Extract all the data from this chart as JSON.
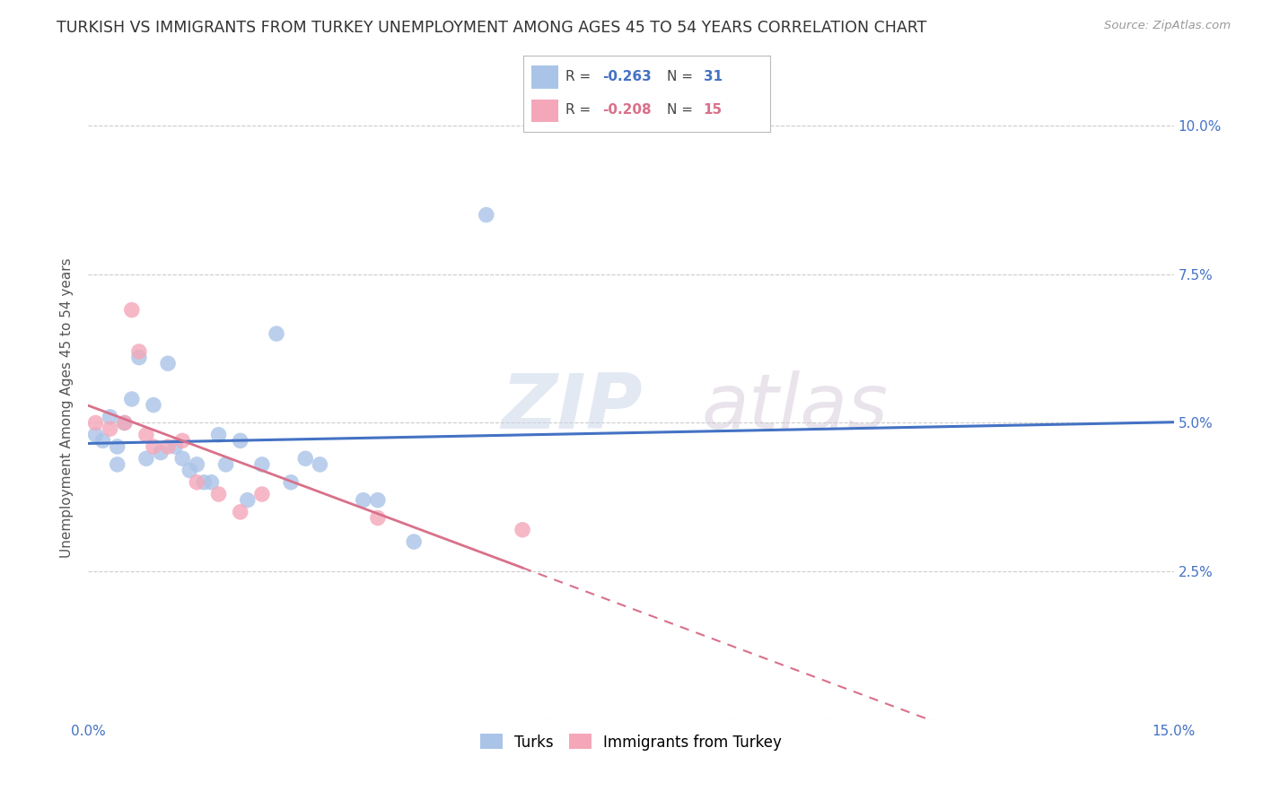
{
  "title": "TURKISH VS IMMIGRANTS FROM TURKEY UNEMPLOYMENT AMONG AGES 45 TO 54 YEARS CORRELATION CHART",
  "source": "Source: ZipAtlas.com",
  "ylabel": "Unemployment Among Ages 45 to 54 years",
  "xlim": [
    0.0,
    0.15
  ],
  "ylim": [
    0.0,
    0.105
  ],
  "background_color": "#ffffff",
  "grid_color": "#cccccc",
  "turks_color": "#aac4e8",
  "immigrants_color": "#f4a7b9",
  "turks_line_color": "#4472c4",
  "immigrants_line_color": "#d9708a",
  "turks_R": "-0.263",
  "turks_N": "31",
  "immigrants_R": "-0.208",
  "immigrants_N": "15",
  "turks_x": [
    0.001,
    0.002,
    0.003,
    0.004,
    0.004,
    0.005,
    0.006,
    0.007,
    0.008,
    0.009,
    0.01,
    0.011,
    0.012,
    0.013,
    0.014,
    0.015,
    0.016,
    0.017,
    0.018,
    0.019,
    0.021,
    0.022,
    0.024,
    0.026,
    0.028,
    0.03,
    0.032,
    0.038,
    0.04,
    0.045,
    0.055
  ],
  "turks_y": [
    0.048,
    0.047,
    0.051,
    0.046,
    0.043,
    0.05,
    0.054,
    0.061,
    0.044,
    0.053,
    0.045,
    0.06,
    0.046,
    0.044,
    0.042,
    0.043,
    0.04,
    0.04,
    0.048,
    0.043,
    0.047,
    0.037,
    0.043,
    0.065,
    0.04,
    0.044,
    0.043,
    0.037,
    0.037,
    0.03,
    0.085
  ],
  "immigrants_x": [
    0.001,
    0.003,
    0.005,
    0.006,
    0.007,
    0.008,
    0.009,
    0.011,
    0.013,
    0.015,
    0.018,
    0.021,
    0.024,
    0.04,
    0.06
  ],
  "immigrants_y": [
    0.05,
    0.049,
    0.05,
    0.069,
    0.062,
    0.048,
    0.046,
    0.046,
    0.047,
    0.04,
    0.038,
    0.035,
    0.038,
    0.034,
    0.032
  ],
  "marker_size": 160,
  "title_fontsize": 12.5,
  "axis_label_fontsize": 11,
  "tick_fontsize": 11,
  "legend_fontsize": 12,
  "watermark_zip_color": "#d0daea",
  "watermark_atlas_color": "#d0c8d8"
}
